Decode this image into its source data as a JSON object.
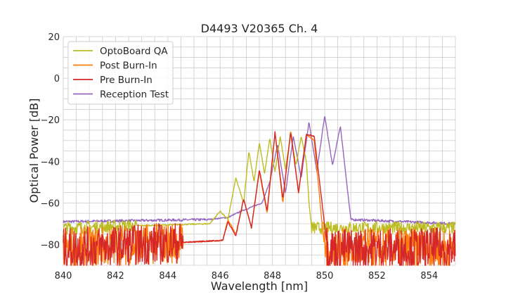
{
  "chart_data": {
    "type": "line",
    "title": "D4493 V20365 Ch. 4",
    "xlabel": "Wavelength [nm]",
    "ylabel": "Optical Power [dB]",
    "xlim": [
      840,
      855
    ],
    "ylim": [
      -90,
      20
    ],
    "x_ticks": [
      840,
      842,
      844,
      846,
      848,
      850,
      852,
      854
    ],
    "x_tick_labels": [
      "840",
      "842",
      "844",
      "846",
      "848",
      "850",
      "852",
      "854"
    ],
    "y_ticks": [
      20,
      0,
      -20,
      -40,
      -60,
      -80
    ],
    "y_tick_labels": [
      "20",
      "0",
      "−20",
      "−40",
      "−60",
      "−80"
    ],
    "grid": true,
    "legend_position": "top-left",
    "series": [
      {
        "name": "OptoBoard QA",
        "color": "#bcbd22",
        "noise_floor": -72,
        "noise_amplitude": 3,
        "x": [
          840,
          845.6,
          846.0,
          846.3,
          846.6,
          846.9,
          847.1,
          847.3,
          847.5,
          847.7,
          847.9,
          848.1,
          848.3,
          848.5,
          848.7,
          848.9,
          849.1,
          849.3,
          849.4,
          849.5,
          855
        ],
        "y": [
          -72,
          -70,
          -64,
          -68,
          -48,
          -60,
          -35,
          -50,
          -31,
          -46,
          -29,
          -45,
          -28,
          -44,
          -27,
          -42,
          -28,
          -40,
          -60,
          -72,
          -72
        ]
      },
      {
        "name": "Post Burn-In",
        "color": "#ff7f0e",
        "noise_floor": -80,
        "noise_amplitude": 10,
        "x": [
          840,
          846.1,
          846.3,
          846.6,
          846.9,
          847.2,
          847.5,
          847.8,
          848.1,
          848.4,
          848.7,
          849.0,
          849.3,
          849.6,
          849.9,
          850.0,
          855
        ],
        "y": [
          -82,
          -78,
          -68,
          -75,
          -58,
          -72,
          -45,
          -65,
          -26,
          -60,
          -25,
          -55,
          -27,
          -30,
          -70,
          -82,
          -82
        ]
      },
      {
        "name": "Pre Burn-In",
        "color": "#d62728",
        "noise_floor": -80,
        "noise_amplitude": 10,
        "x": [
          840,
          846.1,
          846.3,
          846.6,
          846.9,
          847.2,
          847.5,
          847.8,
          848.1,
          848.4,
          848.7,
          849.0,
          849.3,
          849.6,
          849.9,
          850.1,
          855
        ],
        "y": [
          -82,
          -78,
          -69,
          -76,
          -58,
          -72,
          -44,
          -64,
          -26,
          -58,
          -26,
          -55,
          -27,
          -28,
          -60,
          -82,
          -82
        ]
      },
      {
        "name": "Reception Test",
        "color": "#9467bd",
        "noise_floor": -69,
        "noise_amplitude": 0.6,
        "x": [
          840,
          845.5,
          846.3,
          846.8,
          847.2,
          847.6,
          847.9,
          848.2,
          848.5,
          848.8,
          849.1,
          849.4,
          849.7,
          850.0,
          850.3,
          850.6,
          851.0,
          855
        ],
        "y": [
          -69,
          -68,
          -67,
          -64,
          -62,
          -60,
          -50,
          -32,
          -55,
          -28,
          -48,
          -21,
          -45,
          -18,
          -42,
          -23,
          -68,
          -70
        ]
      }
    ]
  }
}
